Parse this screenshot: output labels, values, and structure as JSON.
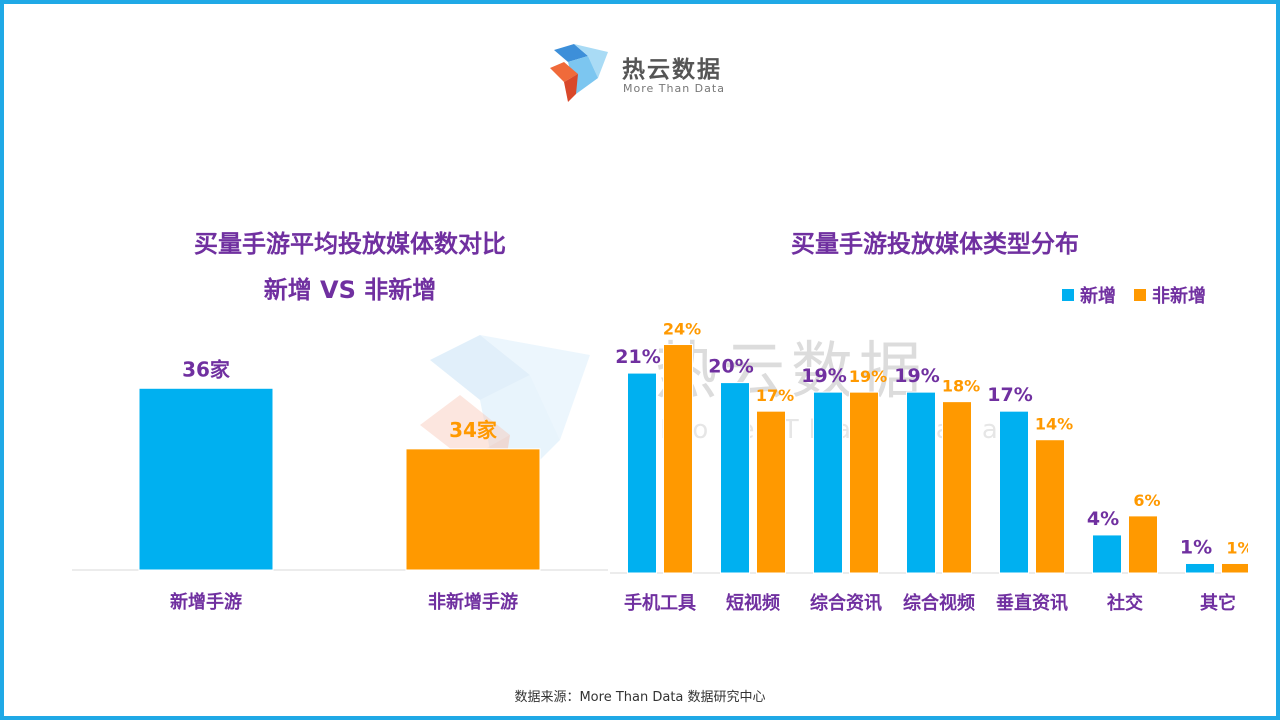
{
  "logo": {
    "title": "热云数据",
    "subtitle": "More Than Data"
  },
  "watermark": {
    "title": "热云数据",
    "subtitle": "More Than Data"
  },
  "colors": {
    "new": "#00b0f0",
    "non_new": "#ff9900",
    "title": "#7030a0",
    "frame": "#1fa9e6"
  },
  "chart_left": {
    "title_line1": "买量手游平均投放媒体数对比",
    "title_line2": "新增 VS 非新增"
  },
  "chart_right": {
    "title": "买量手游投放媒体类型分布",
    "legend": [
      "新增",
      "非新增"
    ]
  },
  "footer": {
    "source": "数据来源：More Than Data 数据研究中心"
  },
  "chart_data": [
    {
      "type": "bar",
      "title": "买量手游平均投放媒体数对比 新增 VS 非新增",
      "categories": [
        "新增手游",
        "非新增手游"
      ],
      "values": [
        36,
        34
      ],
      "value_labels": [
        "36家",
        "34家"
      ],
      "bar_colors": [
        "#00b0f0",
        "#ff9900"
      ],
      "label_colors": [
        "#7030a0",
        "#ff9900"
      ],
      "ylim": [
        30,
        37
      ]
    },
    {
      "type": "bar",
      "title": "买量手游投放媒体类型分布",
      "categories": [
        "手机工具",
        "短视频",
        "综合资讯",
        "综合视频",
        "垂直资讯",
        "社交",
        "其它"
      ],
      "series": [
        {
          "name": "新增",
          "values": [
            21,
            20,
            19,
            19,
            17,
            4,
            1
          ],
          "labels": [
            "21%",
            "20%",
            "19%",
            "19%",
            "17%",
            "4%",
            "1%"
          ]
        },
        {
          "name": "非新增",
          "values": [
            24,
            17,
            19,
            18,
            14,
            6,
            1
          ],
          "labels": [
            "24%",
            "17%",
            "19%",
            "18%",
            "14%",
            "6%",
            "1%"
          ]
        }
      ],
      "ylim": [
        0,
        25
      ],
      "legend": "top-right"
    }
  ]
}
